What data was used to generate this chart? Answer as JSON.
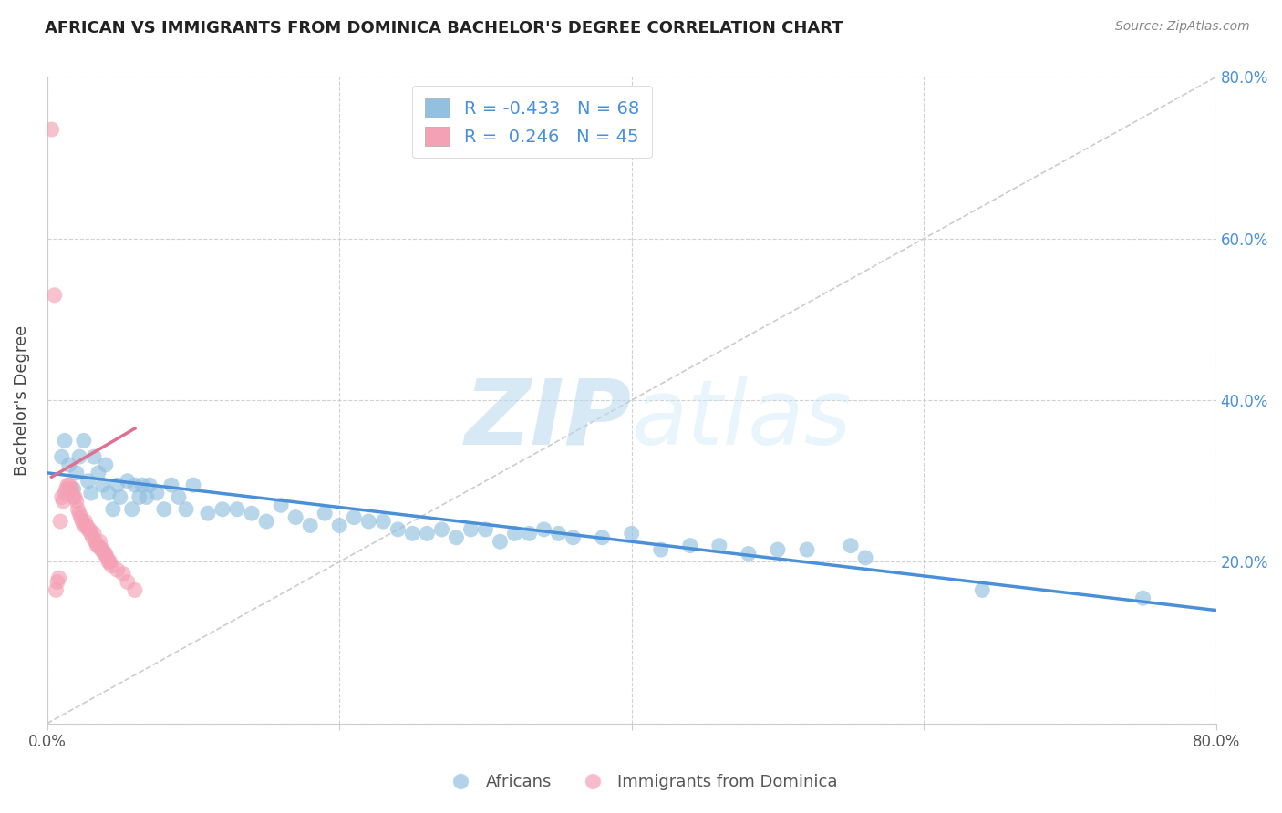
{
  "title": "AFRICAN VS IMMIGRANTS FROM DOMINICA BACHELOR'S DEGREE CORRELATION CHART",
  "source": "Source: ZipAtlas.com",
  "ylabel": "Bachelor's Degree",
  "xlim": [
    0.0,
    0.8
  ],
  "ylim": [
    0.0,
    0.8
  ],
  "x_ticks": [
    0.0,
    0.2,
    0.4,
    0.6,
    0.8
  ],
  "y_ticks": [
    0.0,
    0.2,
    0.4,
    0.6,
    0.8
  ],
  "x_tick_labels": [
    "0.0%",
    "",
    "",
    "",
    "80.0%"
  ],
  "y_tick_labels_right": [
    "",
    "20.0%",
    "40.0%",
    "60.0%",
    "80.0%"
  ],
  "africans_color": "#92c0e0",
  "dominica_color": "#f4a0b5",
  "africans_R": -0.433,
  "africans_N": 68,
  "dominica_R": 0.246,
  "dominica_N": 45,
  "africans_line_color": "#4a90d9",
  "dominica_line_color": "#e07090",
  "diagonal_color": "#cccccc",
  "watermark_zip": "ZIP",
  "watermark_atlas": "atlas",
  "africans_x": [
    0.01,
    0.012,
    0.015,
    0.018,
    0.02,
    0.022,
    0.025,
    0.028,
    0.03,
    0.032,
    0.035,
    0.038,
    0.04,
    0.042,
    0.045,
    0.048,
    0.05,
    0.055,
    0.058,
    0.06,
    0.063,
    0.065,
    0.068,
    0.07,
    0.075,
    0.08,
    0.085,
    0.09,
    0.095,
    0.1,
    0.11,
    0.12,
    0.13,
    0.14,
    0.15,
    0.16,
    0.17,
    0.18,
    0.19,
    0.2,
    0.21,
    0.22,
    0.23,
    0.24,
    0.25,
    0.26,
    0.27,
    0.28,
    0.29,
    0.3,
    0.31,
    0.32,
    0.33,
    0.34,
    0.35,
    0.36,
    0.38,
    0.4,
    0.42,
    0.44,
    0.46,
    0.48,
    0.5,
    0.52,
    0.55,
    0.56,
    0.64,
    0.75
  ],
  "africans_y": [
    0.33,
    0.35,
    0.32,
    0.29,
    0.31,
    0.33,
    0.35,
    0.3,
    0.285,
    0.33,
    0.31,
    0.295,
    0.32,
    0.285,
    0.265,
    0.295,
    0.28,
    0.3,
    0.265,
    0.295,
    0.28,
    0.295,
    0.28,
    0.295,
    0.285,
    0.265,
    0.295,
    0.28,
    0.265,
    0.295,
    0.26,
    0.265,
    0.265,
    0.26,
    0.25,
    0.27,
    0.255,
    0.245,
    0.26,
    0.245,
    0.255,
    0.25,
    0.25,
    0.24,
    0.235,
    0.235,
    0.24,
    0.23,
    0.24,
    0.24,
    0.225,
    0.235,
    0.235,
    0.24,
    0.235,
    0.23,
    0.23,
    0.235,
    0.215,
    0.22,
    0.22,
    0.21,
    0.215,
    0.215,
    0.22,
    0.205,
    0.165,
    0.155
  ],
  "dominica_x": [
    0.003,
    0.005,
    0.006,
    0.007,
    0.008,
    0.009,
    0.01,
    0.011,
    0.012,
    0.013,
    0.014,
    0.015,
    0.016,
    0.017,
    0.018,
    0.019,
    0.02,
    0.021,
    0.022,
    0.023,
    0.024,
    0.025,
    0.026,
    0.027,
    0.028,
    0.029,
    0.03,
    0.031,
    0.032,
    0.033,
    0.034,
    0.035,
    0.036,
    0.037,
    0.038,
    0.039,
    0.04,
    0.041,
    0.042,
    0.043,
    0.044,
    0.048,
    0.052,
    0.055,
    0.06
  ],
  "dominica_y": [
    0.735,
    0.53,
    0.165,
    0.175,
    0.18,
    0.25,
    0.28,
    0.275,
    0.285,
    0.29,
    0.295,
    0.295,
    0.29,
    0.29,
    0.28,
    0.28,
    0.275,
    0.265,
    0.26,
    0.255,
    0.25,
    0.245,
    0.25,
    0.245,
    0.24,
    0.24,
    0.235,
    0.23,
    0.235,
    0.225,
    0.22,
    0.22,
    0.225,
    0.215,
    0.215,
    0.21,
    0.21,
    0.205,
    0.2,
    0.2,
    0.195,
    0.19,
    0.185,
    0.175,
    0.165
  ],
  "africans_line_x": [
    0.0,
    0.8
  ],
  "africans_line_y": [
    0.31,
    0.14
  ],
  "dominica_line_x": [
    0.003,
    0.06
  ],
  "dominica_line_y": [
    0.305,
    0.365
  ]
}
